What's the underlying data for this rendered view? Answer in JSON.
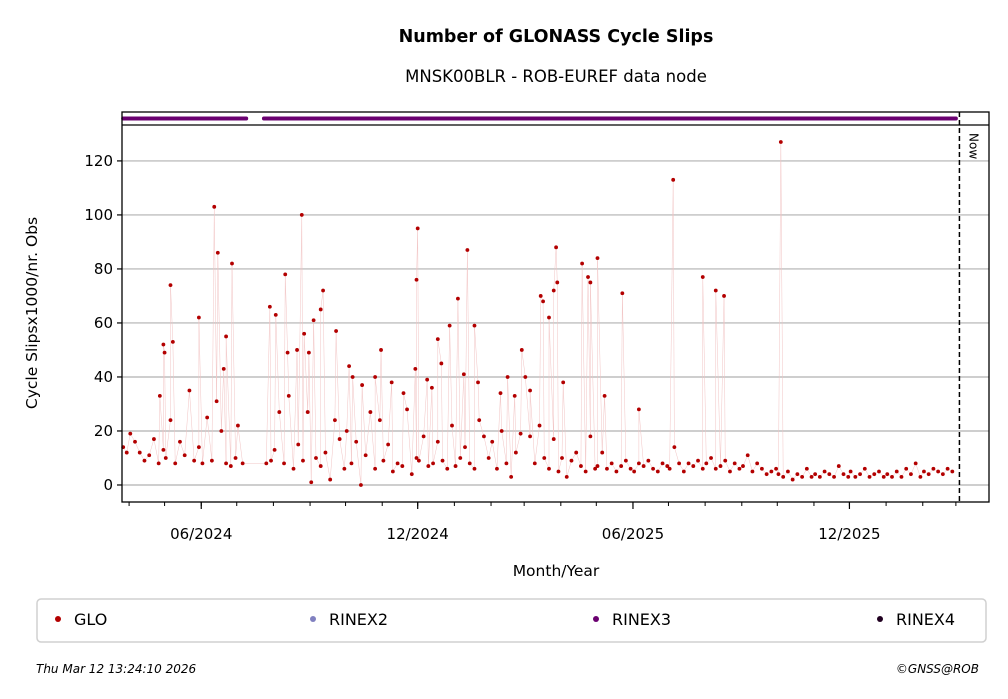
{
  "chart_data": {
    "type": "scatter",
    "title": "Number of GLONASS Cycle Slips",
    "subtitle": "MNSK00BLR - ROB-EUREF data node",
    "xlabel": "Month/Year",
    "ylabel": "Cycle Slipsx1000/nr. Obs",
    "xlim": [
      "2024-03-26",
      "2026-03-29"
    ],
    "ylim": [
      -6.3,
      133.3
    ],
    "x_ticks": [
      {
        "date": "2024-06-01",
        "label": "06/2024"
      },
      {
        "date": "2024-12-01",
        "label": "12/2024"
      },
      {
        "date": "2025-06-01",
        "label": "06/2025"
      },
      {
        "date": "2025-12-01",
        "label": "12/2025"
      }
    ],
    "x_minor_ticks": "monthly",
    "y_ticks": [
      0,
      20,
      40,
      60,
      80,
      100,
      120
    ],
    "grid": "horizontal",
    "now_marker": {
      "date": "2026-03-04",
      "label": "Now"
    },
    "legend": {
      "placement": "bottom",
      "entries": [
        {
          "label": "GLO",
          "color": "#b30000"
        },
        {
          "label": "RINEX2",
          "color": "#8080c0"
        },
        {
          "label": "RINEX3",
          "color": "#6a0070"
        },
        {
          "label": "RINEX4",
          "color": "#200020"
        }
      ]
    },
    "rinex3_availability": [
      [
        "2024-03-27",
        "2024-07-09"
      ],
      [
        "2024-07-24",
        "2026-03-01"
      ]
    ],
    "series": [
      {
        "name": "GLO",
        "color": "#b30000",
        "points": [
          [
            "2024-03-27",
            14
          ],
          [
            "2024-03-30",
            12
          ],
          [
            "2024-04-02",
            19
          ],
          [
            "2024-04-06",
            16
          ],
          [
            "2024-04-10",
            12
          ],
          [
            "2024-04-14",
            9
          ],
          [
            "2024-04-18",
            11
          ],
          [
            "2024-04-22",
            17
          ],
          [
            "2024-04-26",
            8
          ],
          [
            "2024-04-30",
            13
          ],
          [
            "2024-05-02",
            10
          ],
          [
            "2024-05-06",
            24
          ],
          [
            "2024-05-10",
            8
          ],
          [
            "2024-05-14",
            16
          ],
          [
            "2024-05-18",
            11
          ],
          [
            "2024-05-22",
            35
          ],
          [
            "2024-05-26",
            9
          ],
          [
            "2024-05-30",
            14
          ],
          [
            "2024-06-02",
            8
          ],
          [
            "2024-06-06",
            25
          ],
          [
            "2024-06-10",
            9
          ],
          [
            "2024-06-14",
            31
          ],
          [
            "2024-06-18",
            20
          ],
          [
            "2024-06-22",
            8
          ],
          [
            "2024-06-26",
            7
          ],
          [
            "2024-06-30",
            10
          ],
          [
            "2024-07-02",
            22
          ],
          [
            "2024-07-06",
            8
          ],
          [
            "2024-07-26",
            8
          ],
          [
            "2024-07-30",
            9
          ],
          [
            "2024-08-02",
            13
          ],
          [
            "2024-08-06",
            27
          ],
          [
            "2024-08-10",
            8
          ],
          [
            "2024-08-14",
            33
          ],
          [
            "2024-08-18",
            6
          ],
          [
            "2024-08-22",
            15
          ],
          [
            "2024-08-26",
            9
          ],
          [
            "2024-08-30",
            27
          ],
          [
            "2024-09-02",
            1
          ],
          [
            "2024-09-06",
            10
          ],
          [
            "2024-09-10",
            7
          ],
          [
            "2024-09-14",
            12
          ],
          [
            "2024-09-18",
            2
          ],
          [
            "2024-09-22",
            24
          ],
          [
            "2024-09-26",
            17
          ],
          [
            "2024-09-30",
            6
          ],
          [
            "2024-10-02",
            20
          ],
          [
            "2024-10-06",
            8
          ],
          [
            "2024-10-10",
            16
          ],
          [
            "2024-10-14",
            0
          ],
          [
            "2024-10-18",
            11
          ],
          [
            "2024-10-22",
            27
          ],
          [
            "2024-10-26",
            6
          ],
          [
            "2024-10-30",
            24
          ],
          [
            "2024-11-02",
            9
          ],
          [
            "2024-11-06",
            15
          ],
          [
            "2024-11-10",
            5
          ],
          [
            "2024-11-14",
            8
          ],
          [
            "2024-11-18",
            7
          ],
          [
            "2024-11-22",
            28
          ],
          [
            "2024-11-26",
            4
          ],
          [
            "2024-11-30",
            10
          ],
          [
            "2024-12-02",
            9
          ],
          [
            "2024-12-06",
            18
          ],
          [
            "2024-12-10",
            7
          ],
          [
            "2024-12-14",
            8
          ],
          [
            "2024-12-18",
            16
          ],
          [
            "2024-12-22",
            9
          ],
          [
            "2024-12-26",
            6
          ],
          [
            "2024-12-30",
            22
          ],
          [
            "2025-01-02",
            7
          ],
          [
            "2025-01-06",
            10
          ],
          [
            "2025-01-10",
            14
          ],
          [
            "2025-01-14",
            8
          ],
          [
            "2025-01-18",
            6
          ],
          [
            "2025-01-22",
            24
          ],
          [
            "2025-01-26",
            18
          ],
          [
            "2025-01-30",
            10
          ],
          [
            "2025-02-02",
            16
          ],
          [
            "2025-02-06",
            6
          ],
          [
            "2025-02-10",
            20
          ],
          [
            "2025-02-14",
            8
          ],
          [
            "2025-02-18",
            3
          ],
          [
            "2025-02-22",
            12
          ],
          [
            "2025-02-26",
            19
          ],
          [
            "2025-03-02",
            40
          ],
          [
            "2025-03-06",
            18
          ],
          [
            "2025-03-10",
            8
          ],
          [
            "2025-03-14",
            22
          ],
          [
            "2025-03-18",
            10
          ],
          [
            "2025-03-22",
            6
          ],
          [
            "2025-03-26",
            17
          ],
          [
            "2025-03-30",
            5
          ],
          [
            "2025-04-02",
            10
          ],
          [
            "2025-04-06",
            3
          ],
          [
            "2025-04-10",
            9
          ],
          [
            "2025-04-14",
            12
          ],
          [
            "2025-04-18",
            7
          ],
          [
            "2025-04-22",
            5
          ],
          [
            "2025-04-26",
            18
          ],
          [
            "2025-04-30",
            6
          ],
          [
            "2025-05-02",
            7
          ],
          [
            "2025-05-06",
            12
          ],
          [
            "2025-05-10",
            6
          ],
          [
            "2025-05-14",
            8
          ],
          [
            "2025-05-18",
            5
          ],
          [
            "2025-05-22",
            7
          ],
          [
            "2025-05-26",
            9
          ],
          [
            "2025-05-30",
            6
          ],
          [
            "2025-06-02",
            5
          ],
          [
            "2025-06-06",
            8
          ],
          [
            "2025-06-10",
            7
          ],
          [
            "2025-06-14",
            9
          ],
          [
            "2025-06-18",
            6
          ],
          [
            "2025-06-22",
            5
          ],
          [
            "2025-06-26",
            8
          ],
          [
            "2025-06-30",
            7
          ],
          [
            "2025-07-02",
            6
          ],
          [
            "2025-07-06",
            14
          ],
          [
            "2025-07-10",
            8
          ],
          [
            "2025-07-14",
            5
          ],
          [
            "2025-07-18",
            8
          ],
          [
            "2025-07-22",
            7
          ],
          [
            "2025-07-26",
            9
          ],
          [
            "2025-07-30",
            6
          ],
          [
            "2025-08-02",
            8
          ],
          [
            "2025-08-06",
            10
          ],
          [
            "2025-08-10",
            6
          ],
          [
            "2025-08-14",
            7
          ],
          [
            "2025-08-18",
            9
          ],
          [
            "2025-08-22",
            5
          ],
          [
            "2025-08-26",
            8
          ],
          [
            "2025-08-30",
            6
          ],
          [
            "2025-09-02",
            7
          ],
          [
            "2025-09-06",
            11
          ],
          [
            "2025-09-10",
            5
          ],
          [
            "2025-09-14",
            8
          ],
          [
            "2025-09-18",
            6
          ],
          [
            "2025-09-22",
            4
          ],
          [
            "2025-09-26",
            5
          ],
          [
            "2025-09-30",
            6
          ],
          [
            "2025-10-02",
            4
          ],
          [
            "2025-10-06",
            3
          ],
          [
            "2025-10-10",
            5
          ],
          [
            "2025-10-14",
            2
          ],
          [
            "2025-10-18",
            4
          ],
          [
            "2025-10-22",
            3
          ],
          [
            "2025-10-26",
            6
          ],
          [
            "2025-10-30",
            3
          ],
          [
            "2025-11-02",
            4
          ],
          [
            "2025-11-06",
            3
          ],
          [
            "2025-11-10",
            5
          ],
          [
            "2025-11-14",
            4
          ],
          [
            "2025-11-18",
            3
          ],
          [
            "2025-11-22",
            7
          ],
          [
            "2025-11-26",
            4
          ],
          [
            "2025-11-30",
            3
          ],
          [
            "2025-12-02",
            5
          ],
          [
            "2025-12-06",
            3
          ],
          [
            "2025-12-10",
            4
          ],
          [
            "2025-12-14",
            6
          ],
          [
            "2025-12-18",
            3
          ],
          [
            "2025-12-22",
            4
          ],
          [
            "2025-12-26",
            5
          ],
          [
            "2025-12-30",
            3
          ],
          [
            "2026-01-02",
            4
          ],
          [
            "2026-01-06",
            3
          ],
          [
            "2026-01-10",
            5
          ],
          [
            "2026-01-14",
            3
          ],
          [
            "2026-01-18",
            6
          ],
          [
            "2026-01-22",
            4
          ],
          [
            "2026-01-26",
            8
          ],
          [
            "2026-01-30",
            3
          ],
          [
            "2026-02-02",
            5
          ],
          [
            "2026-02-06",
            4
          ],
          [
            "2026-02-10",
            6
          ],
          [
            "2026-02-14",
            5
          ],
          [
            "2026-02-18",
            4
          ],
          [
            "2026-02-22",
            6
          ],
          [
            "2026-02-26",
            5
          ],
          [
            "2024-04-27",
            33
          ],
          [
            "2024-04-30",
            52
          ],
          [
            "2024-05-01",
            49
          ],
          [
            "2024-05-06",
            74
          ],
          [
            "2024-05-08",
            53
          ],
          [
            "2024-05-30",
            62
          ],
          [
            "2024-06-12",
            103
          ],
          [
            "2024-06-15",
            86
          ],
          [
            "2024-06-20",
            43
          ],
          [
            "2024-06-22",
            55
          ],
          [
            "2024-06-27",
            82
          ],
          [
            "2024-07-29",
            66
          ],
          [
            "2024-08-03",
            63
          ],
          [
            "2024-08-11",
            78
          ],
          [
            "2024-08-13",
            49
          ],
          [
            "2024-08-21",
            50
          ],
          [
            "2024-08-25",
            100
          ],
          [
            "2024-08-27",
            56
          ],
          [
            "2024-08-31",
            49
          ],
          [
            "2024-09-04",
            61
          ],
          [
            "2024-09-10",
            65
          ],
          [
            "2024-09-12",
            72
          ],
          [
            "2024-09-23",
            57
          ],
          [
            "2024-10-04",
            44
          ],
          [
            "2024-10-07",
            40
          ],
          [
            "2024-10-15",
            37
          ],
          [
            "2024-10-26",
            40
          ],
          [
            "2024-10-31",
            50
          ],
          [
            "2024-11-09",
            38
          ],
          [
            "2024-11-19",
            34
          ],
          [
            "2024-11-29",
            43
          ],
          [
            "2024-11-30",
            76
          ],
          [
            "2024-12-01",
            95
          ],
          [
            "2024-12-09",
            39
          ],
          [
            "2024-12-13",
            36
          ],
          [
            "2024-12-18",
            54
          ],
          [
            "2024-12-21",
            45
          ],
          [
            "2024-12-28",
            59
          ],
          [
            "2025-01-04",
            69
          ],
          [
            "2025-01-09",
            41
          ],
          [
            "2025-01-12",
            87
          ],
          [
            "2025-01-18",
            59
          ],
          [
            "2025-01-21",
            38
          ],
          [
            "2025-02-09",
            34
          ],
          [
            "2025-02-15",
            40
          ],
          [
            "2025-02-21",
            33
          ],
          [
            "2025-02-27",
            50
          ],
          [
            "2025-03-06",
            35
          ],
          [
            "2025-03-15",
            70
          ],
          [
            "2025-03-17",
            68
          ],
          [
            "2025-03-22",
            62
          ],
          [
            "2025-03-26",
            72
          ],
          [
            "2025-03-28",
            88
          ],
          [
            "2025-03-29",
            75
          ],
          [
            "2025-04-03",
            38
          ],
          [
            "2025-04-19",
            82
          ],
          [
            "2025-04-24",
            77
          ],
          [
            "2025-04-26",
            75
          ],
          [
            "2025-05-02",
            84
          ],
          [
            "2025-05-08",
            33
          ],
          [
            "2025-05-23",
            71
          ],
          [
            "2025-06-06",
            28
          ],
          [
            "2025-07-05",
            113
          ],
          [
            "2025-07-30",
            77
          ],
          [
            "2025-08-10",
            72
          ],
          [
            "2025-08-17",
            70
          ],
          [
            "2025-10-04",
            127
          ]
        ]
      }
    ]
  },
  "footer": {
    "timestamp": "Thu Mar 12 13:24:10 2026",
    "copyright": "©GNSS@ROB"
  }
}
